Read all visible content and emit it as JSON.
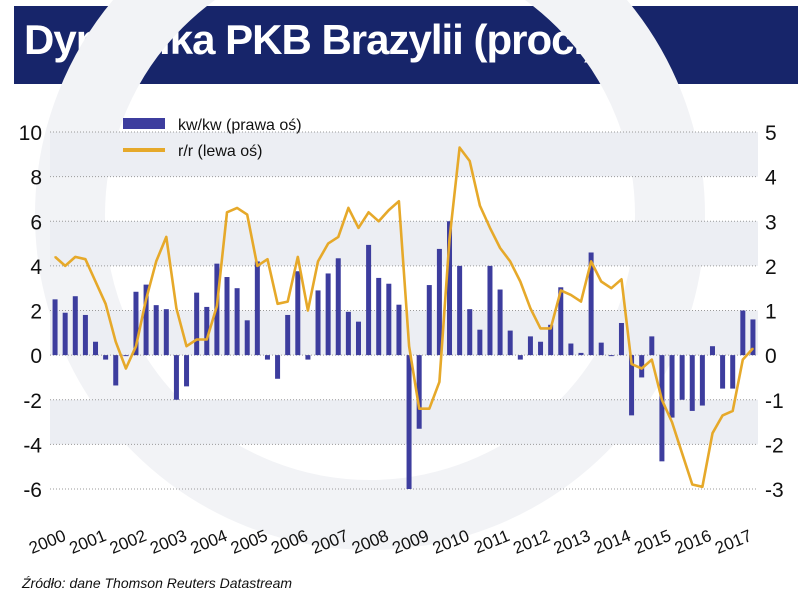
{
  "title": "Dynamika PKB Brazylii (proc.)",
  "source": "Źródło: dane Thomson Reuters Datastream",
  "colors": {
    "title_bg": "#17256a",
    "bars": "#3d3d9e",
    "line": "#e6a92a",
    "grid": "#9a9a9a",
    "band": "#eceef3"
  },
  "chart_data": {
    "type": "bar+line",
    "x_labels": [
      "2000",
      "2001",
      "2002",
      "2003",
      "2004",
      "2005",
      "2006",
      "2007",
      "2008",
      "2009",
      "2010",
      "2011",
      "2012",
      "2013",
      "2014",
      "2015",
      "2016",
      "2017"
    ],
    "left_axis": {
      "label": "r/r (lewa oś)",
      "range": [
        -6,
        10
      ],
      "ticks": [
        "10",
        "8",
        "6",
        "4",
        "2",
        "0",
        "-2",
        "-4",
        "-6"
      ]
    },
    "right_axis": {
      "label": "kw/kw (prawa oś)",
      "range": [
        -3,
        5
      ],
      "ticks": [
        "5",
        "4",
        "3",
        "2",
        "1",
        "0",
        "-1",
        "-2",
        "-3"
      ]
    },
    "series": [
      {
        "name": "kw/kw (prawa oś)",
        "type": "bar",
        "axis": "right",
        "values": [
          1.25,
          0.95,
          1.32,
          0.9,
          0.3,
          -0.1,
          -0.68,
          0.0,
          1.42,
          1.58,
          1.12,
          1.03,
          -1.0,
          -0.7,
          1.4,
          1.08,
          2.05,
          1.75,
          1.5,
          0.78,
          2.1,
          -0.1,
          -0.53,
          0.9,
          1.88,
          -0.1,
          1.45,
          1.83,
          2.17,
          0.97,
          0.75,
          2.47,
          1.73,
          1.6,
          1.13,
          -3.0,
          -1.65,
          1.57,
          2.38,
          3.0,
          2.0,
          1.03,
          0.57,
          2.0,
          1.47,
          0.55,
          -0.1,
          0.42,
          0.3,
          0.68,
          1.52,
          0.26,
          0.05,
          2.3,
          0.28,
          0.0,
          0.72,
          -1.35,
          -0.5,
          0.42,
          -2.38,
          -1.4,
          -1.0,
          -1.25,
          -1.13,
          0.2,
          -0.75,
          -0.75,
          1.0,
          0.8
        ]
      },
      {
        "name": "r/r (lewa oś)",
        "type": "line",
        "axis": "left",
        "values": [
          4.4,
          4.0,
          4.4,
          4.3,
          3.3,
          2.3,
          0.6,
          -0.6,
          0.4,
          2.5,
          4.2,
          5.3,
          2.1,
          0.4,
          0.7,
          0.7,
          2.2,
          6.4,
          6.6,
          6.3,
          4.0,
          4.3,
          2.3,
          2.4,
          4.4,
          2.0,
          4.2,
          5.0,
          5.3,
          6.6,
          5.7,
          6.4,
          6.0,
          6.5,
          6.9,
          0.4,
          -2.4,
          -2.4,
          -1.2,
          5.2,
          9.3,
          8.7,
          6.7,
          5.7,
          4.8,
          4.2,
          3.3,
          2.1,
          1.2,
          1.2,
          2.9,
          2.7,
          2.4,
          4.2,
          3.3,
          3.0,
          3.4,
          -0.4,
          -0.6,
          -0.2,
          -2.0,
          -3.0,
          -4.4,
          -5.8,
          -5.9,
          -3.5,
          -2.7,
          -2.5,
          -0.2,
          0.3
        ]
      }
    ]
  }
}
